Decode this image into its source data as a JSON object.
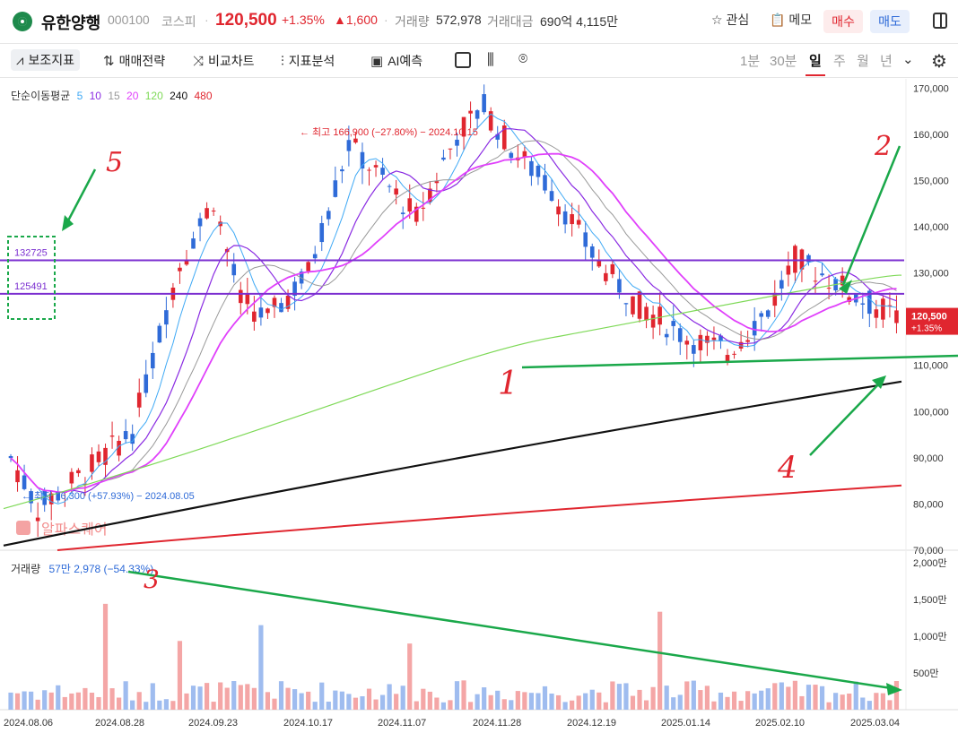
{
  "header": {
    "stock_name": "유한양행",
    "stock_code": "000100",
    "market": "코스피",
    "price": "120,500",
    "change_pct": "+1.35%",
    "change_amt": "▲1,600",
    "volume_label": "거래량",
    "volume_value": "572,978",
    "amount_label": "거래대금",
    "amount_value": "690억 4,115만",
    "watch_label": "관심",
    "memo_label": "메모",
    "buy_label": "매수",
    "sell_label": "매도"
  },
  "toolbar": {
    "indicators": "보조지표",
    "strategy": "매매전략",
    "compare": "비교차트",
    "analysis": "지표분석",
    "ai_predict": "AI예측",
    "timeframes": [
      "1분",
      "30분",
      "일",
      "주",
      "월",
      "년"
    ],
    "selected_timeframe": "일"
  },
  "ma_legend": {
    "title": "단순이동평균",
    "periods": [
      {
        "label": "5",
        "color": "#3fa9f5"
      },
      {
        "label": "10",
        "color": "#8a2be2"
      },
      {
        "label": "15",
        "color": "#999999"
      },
      {
        "label": "20",
        "color": "#e040fb"
      },
      {
        "label": "120",
        "color": "#7ed957"
      },
      {
        "label": "240",
        "color": "#111111"
      },
      {
        "label": "480",
        "color": "#e0262f"
      }
    ]
  },
  "watermark": "알파스퀘어",
  "price_axis": [
    "170,000",
    "160,000",
    "150,000",
    "140,000",
    "130,000",
    "120,000",
    "110,000",
    "100,000",
    "90,000",
    "80,000",
    "70,000"
  ],
  "volume_axis": [
    "2,000만",
    "1,500만",
    "1,000만",
    "500만"
  ],
  "date_axis": [
    "2024.08.06",
    "2024.08.28",
    "2024.09.23",
    "2024.10.17",
    "2024.11.07",
    "2024.11.28",
    "2024.12.19",
    "2025.01.14",
    "2025.02.10",
    "2025.03.04"
  ],
  "annotations": {
    "high": "최고 166,900 (−27.80%) − 2024.10.15",
    "low": "최저 76,300 (+57.93%) − 2024.08.05",
    "level1": "132725",
    "level2": "125491",
    "current_price": "120,500",
    "current_pct": "+1.35%",
    "volume_title": "거래량",
    "volume_value": "57만 2,978 (−54.33%)",
    "hand_marks": [
      "5",
      "2",
      "1",
      "4",
      "3"
    ]
  },
  "chart_data": {
    "type": "candlestick",
    "title": "",
    "ylim": [
      70000,
      172000
    ],
    "volume_ylim": [
      0,
      20000000
    ],
    "horizontal_levels": [
      132725,
      125491
    ],
    "high": {
      "value": 166900,
      "date": "2024.10.15"
    },
    "low": {
      "value": 76300,
      "date": "2024.08.05"
    },
    "last_close": 120500,
    "ma240_range": [
      71000,
      106500
    ],
    "ma480_range": [
      70000,
      84000
    ],
    "colors": {
      "up": "#e0262f",
      "down": "#2f6bd8",
      "level": "#7b2fd0",
      "trend": "#1aa84a"
    }
  }
}
